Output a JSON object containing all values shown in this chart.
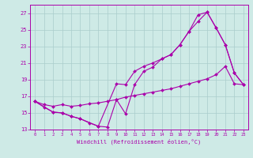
{
  "xlabel": "Windchill (Refroidissement éolien,°C)",
  "bg_color": "#ceeae6",
  "grid_color": "#aacccc",
  "line_color": "#aa00aa",
  "xlim": [
    -0.5,
    23.5
  ],
  "ylim": [
    13,
    28
  ],
  "yticks": [
    13,
    15,
    17,
    19,
    21,
    23,
    25,
    27
  ],
  "xticks": [
    0,
    1,
    2,
    3,
    4,
    5,
    6,
    7,
    8,
    9,
    10,
    11,
    12,
    13,
    14,
    15,
    16,
    17,
    18,
    19,
    20,
    21,
    22,
    23
  ],
  "series1_x": [
    0,
    1,
    2,
    3,
    4,
    5,
    6,
    7,
    8,
    9,
    10,
    11,
    12,
    13,
    14,
    15,
    16,
    17,
    18,
    19,
    20,
    21,
    22,
    23
  ],
  "series1_y": [
    16.4,
    15.7,
    15.1,
    15.0,
    14.6,
    14.3,
    13.8,
    13.4,
    13.3,
    16.6,
    14.9,
    18.4,
    20.0,
    20.5,
    21.5,
    22.0,
    23.2,
    24.8,
    26.0,
    27.1,
    25.2,
    23.2,
    19.8,
    18.4
  ],
  "series2_x": [
    0,
    1,
    2,
    3,
    4,
    5,
    6,
    7,
    8,
    9,
    10,
    11,
    12,
    13,
    14,
    15,
    16,
    17,
    18,
    19,
    20,
    21,
    22,
    23
  ],
  "series2_y": [
    16.4,
    16.0,
    15.8,
    16.0,
    15.8,
    15.9,
    16.1,
    16.2,
    16.4,
    16.6,
    16.9,
    17.1,
    17.3,
    17.5,
    17.7,
    17.9,
    18.2,
    18.5,
    18.8,
    19.1,
    19.6,
    20.6,
    18.5,
    18.4
  ],
  "series3_x": [
    0,
    2,
    3,
    4,
    5,
    7,
    9,
    10,
    11,
    12,
    13,
    14,
    15,
    16,
    17,
    18,
    19,
    20,
    21,
    22,
    23
  ],
  "series3_y": [
    16.4,
    15.1,
    15.0,
    14.6,
    14.3,
    13.4,
    18.5,
    18.4,
    20.0,
    20.6,
    21.0,
    21.5,
    22.0,
    23.2,
    24.8,
    26.8,
    27.1,
    25.2,
    23.2,
    19.8,
    18.4
  ]
}
